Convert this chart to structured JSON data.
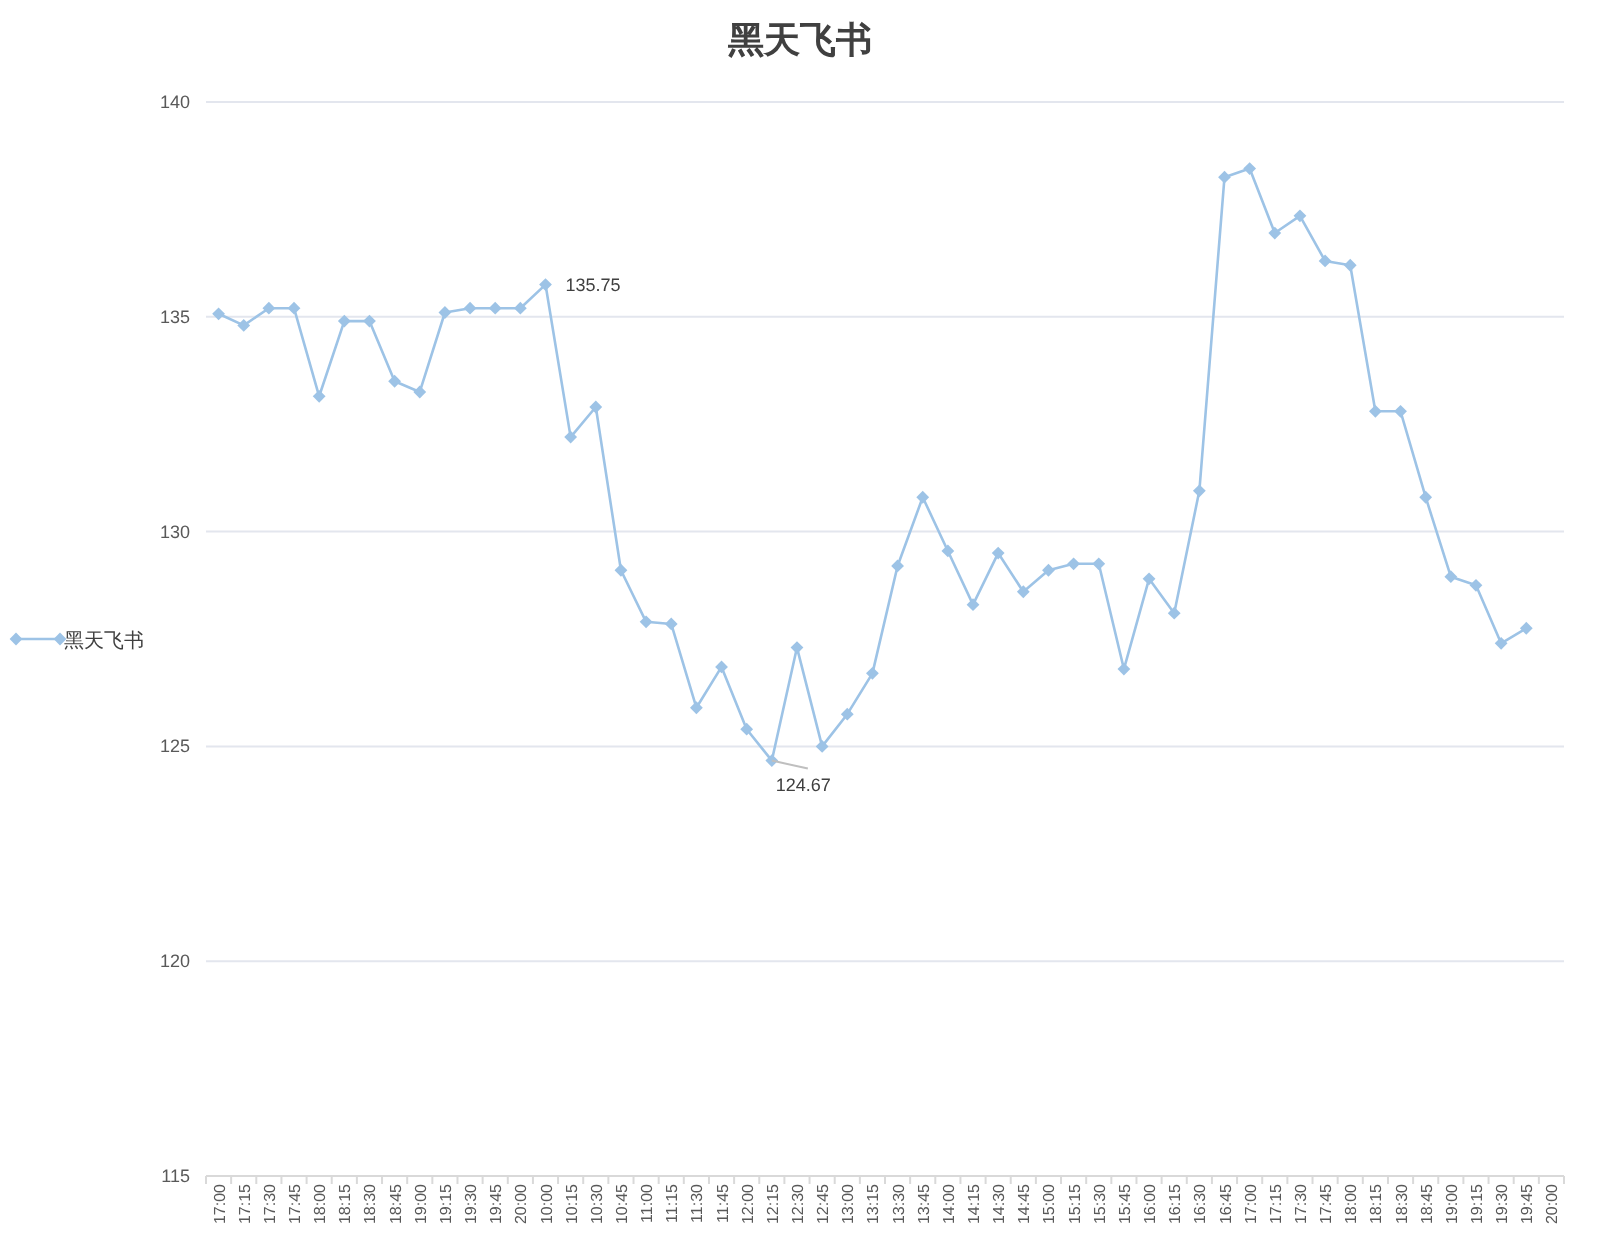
{
  "chart_data": {
    "type": "line",
    "title": "黑天飞书",
    "categories": [
      "17:00",
      "17:15",
      "17:30",
      "17:45",
      "18:00",
      "18:15",
      "18:30",
      "18:45",
      "19:00",
      "19:15",
      "19:30",
      "19:45",
      "20:00",
      "10:00",
      "10:15",
      "10:30",
      "10:45",
      "11:00",
      "11:15",
      "11:30",
      "11:45",
      "12:00",
      "12:15",
      "12:30",
      "12:45",
      "13:00",
      "13:15",
      "13:30",
      "13:45",
      "14:00",
      "14:15",
      "14:30",
      "14:45",
      "15:00",
      "15:15",
      "15:30",
      "15:45",
      "16:00",
      "16:15",
      "16:30",
      "16:45",
      "17:00",
      "17:15",
      "17:30",
      "17:45",
      "18:00",
      "18:15",
      "18:30",
      "18:45",
      "19:00",
      "19:15",
      "19:30",
      "19:45",
      "20:00"
    ],
    "series": [
      {
        "name": "黑天飞书",
        "color": "#9dc3e6",
        "values": [
          135.07,
          134.8,
          135.2,
          135.2,
          133.15,
          134.9,
          134.9,
          133.5,
          133.25,
          135.1,
          135.2,
          135.2,
          135.2,
          135.75,
          132.2,
          132.9,
          129.1,
          127.9,
          127.85,
          125.9,
          126.85,
          125.4,
          124.67,
          127.3,
          125.0,
          125.75,
          126.7,
          129.2,
          130.8,
          129.55,
          128.3,
          129.5,
          128.6,
          129.1,
          129.25,
          129.25,
          126.8,
          128.9,
          128.1,
          130.95,
          138.25,
          138.45,
          136.95,
          137.35,
          136.3,
          136.2,
          132.8,
          132.8,
          130.8,
          128.95,
          128.75,
          127.4,
          127.75,
          null
        ]
      }
    ],
    "ylim": [
      115,
      140
    ],
    "yticks": [
      115,
      120,
      125,
      130,
      135,
      140
    ],
    "grid": "y",
    "legend": "left",
    "marker": "diamond",
    "annotations": [
      {
        "text": "135.75",
        "x": "10:00",
        "y": 135.75
      },
      {
        "text": "124.67",
        "x": "12:15",
        "y": 124.67
      }
    ]
  }
}
